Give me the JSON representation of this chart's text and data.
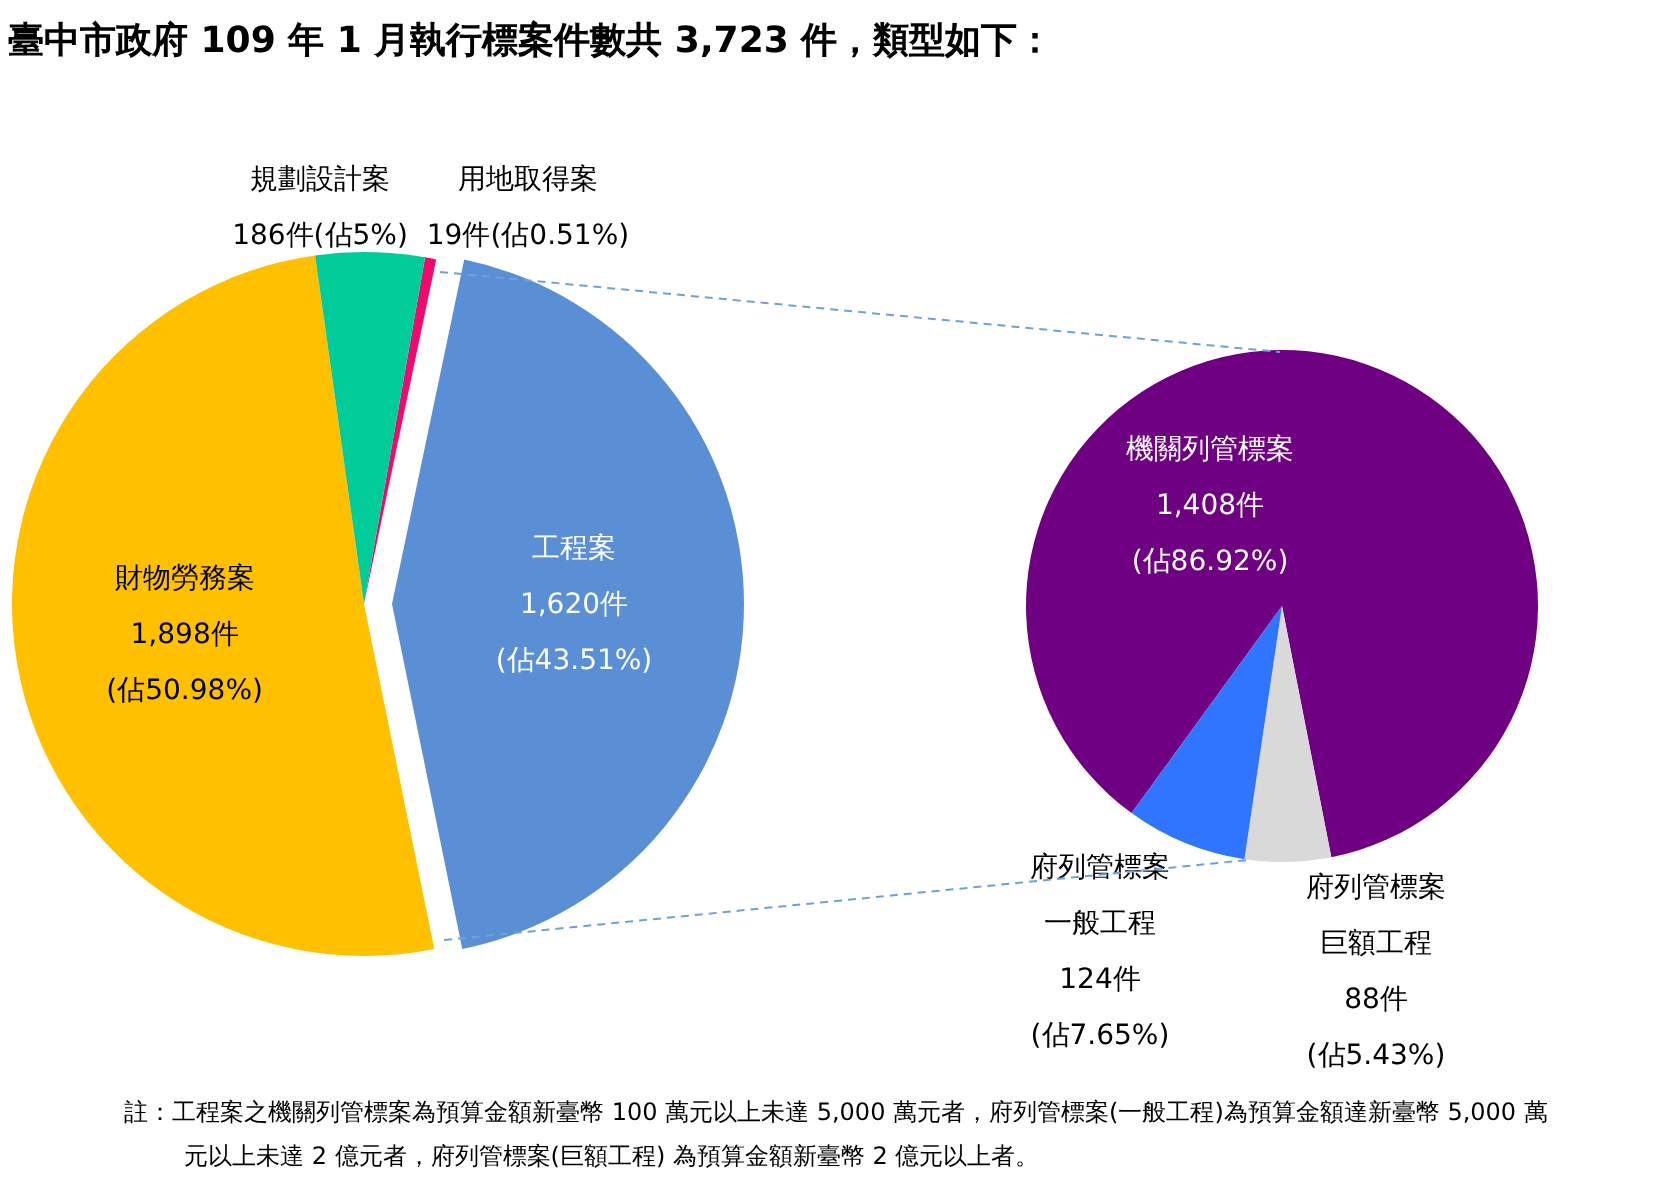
{
  "chart_data": [
    {
      "type": "pie",
      "title": "臺中市政府 109 年 1 月執行標案件數共 3,723 件，類型如下：",
      "categories": [
        "用地取得案",
        "工程案",
        "財物勞務案",
        "規劃設計案"
      ],
      "values": [
        19,
        1620,
        1898,
        186
      ],
      "colors": [
        "#ee0a6e",
        "#5a8fd6",
        "#ffc000",
        "#00cc99"
      ],
      "value_labels": [
        "19件(佔0.51%)",
        "1,620件\n(佔43.51%)",
        "1,898件\n(佔50.98%)",
        "186件(佔5%)"
      ]
    },
    {
      "type": "pie",
      "categories": [
        "機關列管標案",
        "府列管標案巨額工程",
        "府列管標案一般工程"
      ],
      "values": [
        1408,
        88,
        124
      ],
      "colors": [
        "#6f0082",
        "#d9d9d9",
        "#2f75ff"
      ],
      "value_labels": [
        "1,408件\n(佔86.92%)",
        "88件\n(佔5.43%)",
        "124件\n(佔7.65%)"
      ],
      "annotations": [
        "註：工程案之機關列管標案為預算金額新臺幣 100 萬元以上未達 5,000 萬元者，府列管標案(一般工程)為預算金額達新臺幣 5,000 萬元以上未達 2 億元者，府列管標案(巨額工程)  為預算金額新臺幣 2 億元以上者。"
      ]
    }
  ]
}
